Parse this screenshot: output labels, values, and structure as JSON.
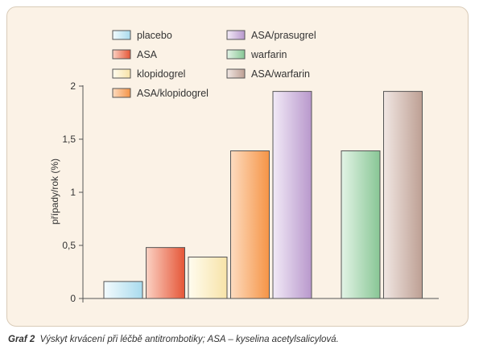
{
  "caption": {
    "label": "Graf 2",
    "text": "Výskyt krvácení při léčbě antitrombotiky; ASA – kyselina acetylsalicylová."
  },
  "chart_data": {
    "type": "bar",
    "ylabel": "případy/rok (%)",
    "ylim": [
      0,
      2
    ],
    "yticks": [
      0,
      0.5,
      1,
      1.5,
      2
    ],
    "ytick_labels": [
      "0",
      "0,5",
      "1",
      "1,5",
      "2"
    ],
    "grid": false,
    "legend_position": "top",
    "categories": [
      "placebo",
      "ASA",
      "klopidogrel",
      "ASA/klopidogrel",
      "ASA/prasugrel",
      "warfarin",
      "ASA/warfarin"
    ],
    "values": [
      0.16,
      0.48,
      0.39,
      1.39,
      1.95,
      1.39,
      1.95
    ],
    "colors": [
      {
        "light": "#f3fbfe",
        "dark": "#a9dbed"
      },
      {
        "light": "#fbd2c4",
        "dark": "#e55637"
      },
      {
        "light": "#fffcef",
        "dark": "#f7e3a8"
      },
      {
        "light": "#fddcc0",
        "dark": "#f59446"
      },
      {
        "light": "#f2eaf7",
        "dark": "#b898cc"
      },
      {
        "light": "#e3f4e6",
        "dark": "#88c695"
      },
      {
        "light": "#f1e7e3",
        "dark": "#bd9f93"
      }
    ]
  }
}
